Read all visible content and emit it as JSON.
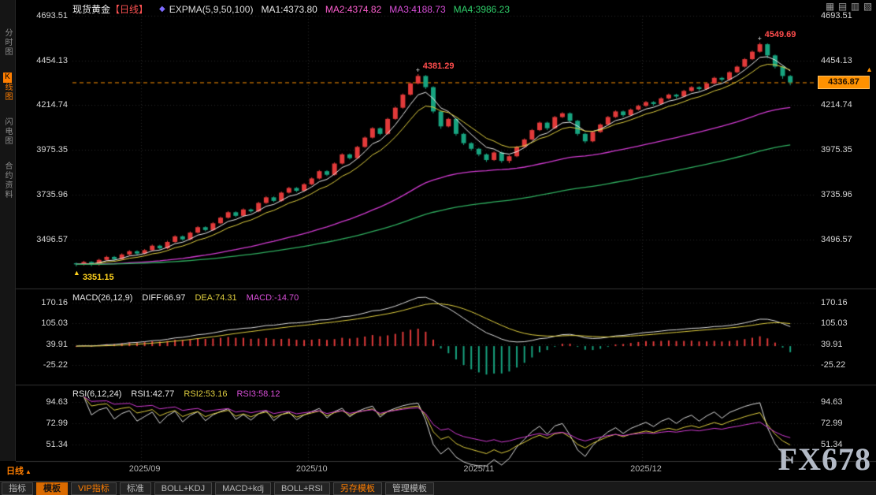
{
  "window": {
    "watermark": "FX678"
  },
  "palette": {
    "background": "#000000",
    "up_candle": "#e23a3a",
    "down_candle": "#17a37f",
    "ema5": "#ececec",
    "ema9": "#e0cf3f",
    "ema50": "#d23bd2",
    "ema100": "#2fae5f",
    "accent_orange": "#ff7e00",
    "annotation_red": "#ff4d4d",
    "annotation_yellow": "#ffd21e",
    "last_price_tag": "#ff9100"
  },
  "sidebar": {
    "items": [
      {
        "name": "sidebar-item-time-chart",
        "label": "分时图",
        "active": false
      },
      {
        "name": "sidebar-item-kline",
        "label": "K线图",
        "active": true
      },
      {
        "name": "sidebar-item-flash-chart",
        "label": "闪电图",
        "active": false
      },
      {
        "name": "sidebar-item-contract-info",
        "label": "合约资料",
        "active": false
      }
    ]
  },
  "header": {
    "symbol": "现货黄金",
    "period": "【日线】",
    "indicator": "EXPMA(5,9,50,100)",
    "ma1": "MA1:4373.80",
    "ma2": "MA2:4374.82",
    "ma3": "MA3:4188.73",
    "ma4": "MA4:3986.23"
  },
  "top_icons": [
    {
      "name": "layout-grid-icon",
      "glyph": "▦"
    },
    {
      "name": "layout-rows-icon",
      "glyph": "▤"
    },
    {
      "name": "layout-columns-icon",
      "glyph": "▥"
    },
    {
      "name": "layout-next-page-icon",
      "glyph": "▧"
    }
  ],
  "macd_header": {
    "name": "MACD(26,12,9)",
    "diff": "DIFF:66.97",
    "dea": "DEA:74.31",
    "macd": "MACD:-14.70"
  },
  "rsi_header": {
    "name": "RSI(6,12,24)",
    "rsi1": "RSI1:42.77",
    "rsi2": "RSI2:53.16",
    "rsi3": "RSI3:58.12"
  },
  "bottom": {
    "period": "日线",
    "tabs": [
      {
        "name": "tab-indicator",
        "label": "指标"
      },
      {
        "name": "tab-template",
        "label": "模板",
        "selected": true
      },
      {
        "name": "tab-vip-indicator",
        "label": "VIP指标",
        "accent": true
      },
      {
        "name": "tab-standard",
        "label": "标准"
      },
      {
        "name": "tab-boll-kdj",
        "label": "BOLL+KDJ"
      },
      {
        "name": "tab-macd-kdj",
        "label": "MACD+kdj"
      },
      {
        "name": "tab-boll-rsi",
        "label": "BOLL+RSI"
      },
      {
        "name": "tab-save-template",
        "label": "另存模板",
        "accent": true
      },
      {
        "name": "tab-manage-template",
        "label": "管理模板"
      }
    ]
  },
  "chart_data": {
    "type": "candlestick",
    "title": "现货黄金 日线 (Spot Gold Daily)",
    "indicators": {
      "expma": [
        5,
        9,
        50,
        100
      ],
      "macd": [
        26,
        12,
        9
      ],
      "rsi": [
        6,
        12,
        24
      ]
    },
    "y_ticks_main": [
      4693.51,
      4454.13,
      4214.74,
      3975.35,
      3735.96,
      3496.57
    ],
    "y_ticks_macd": [
      170.16,
      105.03,
      39.91,
      -25.22
    ],
    "y_ticks_rsi": [
      94.63,
      72.99,
      51.34
    ],
    "months": [
      {
        "label": "2025/09",
        "index": 9
      },
      {
        "label": "2025/10",
        "index": 31
      },
      {
        "label": "2025/11",
        "index": 53
      },
      {
        "label": "2025/12",
        "index": 75
      }
    ],
    "last_price": 4336.87,
    "annotations": [
      {
        "name": "low-price-label",
        "label": "3351.15",
        "index": 0,
        "price": 3351.15,
        "color": "#ffd21e"
      },
      {
        "name": "peak1-price-label",
        "label": "4381.29",
        "index": 45,
        "price": 4381.29,
        "color": "#ff4d4d"
      },
      {
        "name": "peak2-price-label",
        "label": "4549.69",
        "index": 90,
        "price": 4549.69,
        "color": "#ff4d4d"
      }
    ],
    "candles": [
      [
        3368,
        3372,
        3351.15,
        3362
      ],
      [
        3362,
        3381,
        3356,
        3375
      ],
      [
        3375,
        3379,
        3352,
        3360
      ],
      [
        3360,
        3392,
        3355,
        3386
      ],
      [
        3386,
        3408,
        3381,
        3402
      ],
      [
        3402,
        3407,
        3383,
        3390
      ],
      [
        3390,
        3421,
        3386,
        3415
      ],
      [
        3415,
        3438,
        3410,
        3432
      ],
      [
        3432,
        3437,
        3412,
        3420
      ],
      [
        3420,
        3444,
        3415,
        3438
      ],
      [
        3438,
        3468,
        3433,
        3462
      ],
      [
        3462,
        3467,
        3441,
        3448
      ],
      [
        3448,
        3488,
        3443,
        3482
      ],
      [
        3482,
        3518,
        3477,
        3512
      ],
      [
        3512,
        3517,
        3489,
        3496
      ],
      [
        3496,
        3538,
        3491,
        3532
      ],
      [
        3532,
        3567,
        3527,
        3561
      ],
      [
        3561,
        3566,
        3539,
        3546
      ],
      [
        3546,
        3588,
        3541,
        3582
      ],
      [
        3582,
        3618,
        3577,
        3612
      ],
      [
        3612,
        3647,
        3607,
        3641
      ],
      [
        3641,
        3646,
        3615,
        3622
      ],
      [
        3622,
        3662,
        3617,
        3656
      ],
      [
        3656,
        3661,
        3639,
        3646
      ],
      [
        3646,
        3697,
        3641,
        3691
      ],
      [
        3691,
        3727,
        3686,
        3721
      ],
      [
        3721,
        3726,
        3695,
        3702
      ],
      [
        3702,
        3752,
        3697,
        3746
      ],
      [
        3746,
        3777,
        3741,
        3771
      ],
      [
        3771,
        3776,
        3749,
        3756
      ],
      [
        3756,
        3797,
        3751,
        3791
      ],
      [
        3791,
        3828,
        3786,
        3822
      ],
      [
        3822,
        3867,
        3817,
        3861
      ],
      [
        3861,
        3866,
        3835,
        3842
      ],
      [
        3842,
        3908,
        3837,
        3902
      ],
      [
        3902,
        3957,
        3897,
        3951
      ],
      [
        3951,
        3956,
        3924,
        3931
      ],
      [
        3931,
        3997,
        3926,
        3991
      ],
      [
        3991,
        4047,
        3986,
        4041
      ],
      [
        4041,
        4097,
        4036,
        4091
      ],
      [
        4091,
        4096,
        4054,
        4061
      ],
      [
        4061,
        4147,
        4056,
        4141
      ],
      [
        4141,
        4207,
        4136,
        4201
      ],
      [
        4201,
        4277,
        4196,
        4271
      ],
      [
        4271,
        4337,
        4266,
        4331
      ],
      [
        4331,
        4381.29,
        4326,
        4371
      ],
      [
        4371,
        4376,
        4301,
        4311
      ],
      [
        4311,
        4316,
        4171,
        4181
      ],
      [
        4181,
        4186,
        4088,
        4101
      ],
      [
        4101,
        4147,
        4096,
        4141
      ],
      [
        4141,
        4146,
        4051,
        4061
      ],
      [
        4061,
        4066,
        4001,
        4011
      ],
      [
        4011,
        4016,
        3971,
        3981
      ],
      [
        3981,
        3986,
        3941,
        3951
      ],
      [
        3951,
        3956,
        3911,
        3921
      ],
      [
        3921,
        3967,
        3916,
        3961
      ],
      [
        3961,
        3966,
        3906,
        3916
      ],
      [
        3916,
        3947,
        3904,
        3941
      ],
      [
        3941,
        3997,
        3936,
        3991
      ],
      [
        3991,
        4037,
        3986,
        4031
      ],
      [
        4031,
        4087,
        4026,
        4081
      ],
      [
        4081,
        4127,
        4076,
        4121
      ],
      [
        4121,
        4126,
        4081,
        4091
      ],
      [
        4091,
        4157,
        4086,
        4151
      ],
      [
        4151,
        4177,
        4146,
        4171
      ],
      [
        4171,
        4176,
        4121,
        4131
      ],
      [
        4131,
        4136,
        4051,
        4061
      ],
      [
        4061,
        4066,
        4011,
        4021
      ],
      [
        4021,
        4077,
        4016,
        4071
      ],
      [
        4071,
        4117,
        4066,
        4111
      ],
      [
        4111,
        4157,
        4106,
        4151
      ],
      [
        4151,
        4187,
        4146,
        4181
      ],
      [
        4181,
        4186,
        4151,
        4161
      ],
      [
        4161,
        4197,
        4156,
        4191
      ],
      [
        4191,
        4217,
        4186,
        4211
      ],
      [
        4211,
        4237,
        4206,
        4231
      ],
      [
        4231,
        4236,
        4211,
        4221
      ],
      [
        4221,
        4257,
        4216,
        4251
      ],
      [
        4251,
        4277,
        4246,
        4271
      ],
      [
        4271,
        4276,
        4249,
        4261
      ],
      [
        4261,
        4297,
        4256,
        4291
      ],
      [
        4291,
        4317,
        4286,
        4311
      ],
      [
        4311,
        4316,
        4291,
        4301
      ],
      [
        4301,
        4337,
        4296,
        4331
      ],
      [
        4331,
        4367,
        4326,
        4361
      ],
      [
        4361,
        4366,
        4341,
        4351
      ],
      [
        4351,
        4397,
        4346,
        4391
      ],
      [
        4391,
        4427,
        4386,
        4421
      ],
      [
        4421,
        4467,
        4416,
        4461
      ],
      [
        4461,
        4507,
        4456,
        4501
      ],
      [
        4501,
        4549.69,
        4496,
        4541
      ],
      [
        4541,
        4546,
        4466,
        4481
      ],
      [
        4481,
        4486,
        4411,
        4421
      ],
      [
        4421,
        4426,
        4356,
        4371
      ],
      [
        4371,
        4376,
        4321,
        4336.87
      ]
    ]
  }
}
